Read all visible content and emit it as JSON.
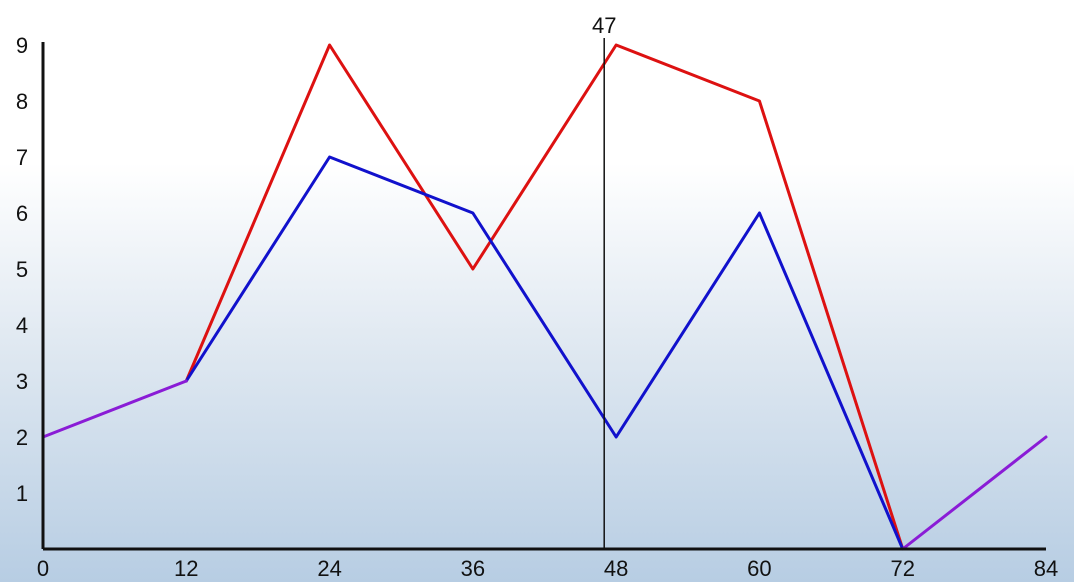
{
  "chart_data": {
    "type": "line",
    "title": "",
    "xlabel": "",
    "ylabel": "",
    "xlim": [
      0,
      84
    ],
    "ylim": [
      0,
      9
    ],
    "x_ticks": [
      0,
      12,
      24,
      36,
      48,
      60,
      72,
      84
    ],
    "y_ticks": [
      1,
      2,
      3,
      4,
      5,
      6,
      7,
      8,
      9
    ],
    "grid": false,
    "legend": "none",
    "cursor": {
      "x": 47,
      "label": "47"
    },
    "series": [
      {
        "color": "#dd1111",
        "points": [
          {
            "x": 12,
            "y": 3
          },
          {
            "x": 24,
            "y": 9
          },
          {
            "x": 36,
            "y": 5
          },
          {
            "x": 48,
            "y": 9
          },
          {
            "x": 60,
            "y": 8
          },
          {
            "x": 72,
            "y": 0
          }
        ]
      },
      {
        "color": "#1111cc",
        "points": [
          {
            "x": 12,
            "y": 3
          },
          {
            "x": 24,
            "y": 7
          },
          {
            "x": 36,
            "y": 6
          },
          {
            "x": 48,
            "y": 2
          },
          {
            "x": 60,
            "y": 6
          },
          {
            "x": 72,
            "y": 0
          }
        ]
      },
      {
        "color": "#8a1cd6",
        "points": [
          {
            "x": 0,
            "y": 2
          },
          {
            "x": 12,
            "y": 3
          }
        ]
      },
      {
        "color": "#8a1cd6",
        "points": [
          {
            "x": 72,
            "y": 0
          },
          {
            "x": 84,
            "y": 2
          }
        ]
      }
    ]
  }
}
